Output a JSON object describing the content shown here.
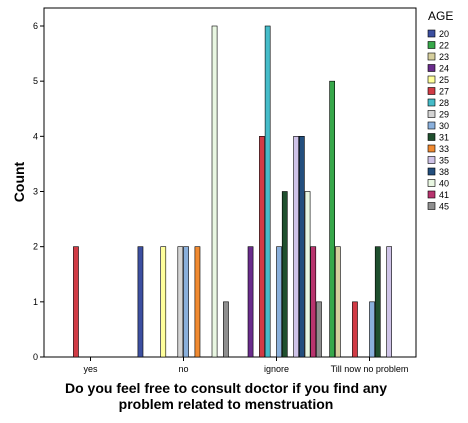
{
  "chart_data": {
    "type": "bar",
    "title": "",
    "xlabel": "Do you feel free to consult doctor if you find any problem related to menstruation",
    "ylabel": "Count",
    "categories": [
      "yes",
      "no",
      "ignore",
      "Till now no problem"
    ],
    "ylim": [
      0,
      6
    ],
    "yticks": [
      0,
      1,
      2,
      3,
      4,
      5,
      6
    ],
    "grid": false,
    "legend_title": "AGE",
    "legend_position": "right",
    "series": [
      {
        "name": "20",
        "color": "#3c4fa0",
        "values": [
          0,
          2,
          0,
          0
        ]
      },
      {
        "name": "22",
        "color": "#37a84a",
        "values": [
          0,
          0,
          0,
          5
        ]
      },
      {
        "name": "23",
        "color": "#d6cf9e",
        "values": [
          0,
          0,
          0,
          2
        ]
      },
      {
        "name": "24",
        "color": "#6a2c8c",
        "values": [
          0,
          0,
          2,
          0
        ]
      },
      {
        "name": "25",
        "color": "#ffff9c",
        "values": [
          0,
          2,
          0,
          0
        ]
      },
      {
        "name": "27",
        "color": "#d13b45",
        "values": [
          2,
          0,
          4,
          1
        ]
      },
      {
        "name": "28",
        "color": "#45bcc9",
        "values": [
          0,
          0,
          6,
          0
        ]
      },
      {
        "name": "29",
        "color": "#d4d4d4",
        "values": [
          0,
          2,
          0,
          0
        ]
      },
      {
        "name": "30",
        "color": "#8ab0dc",
        "values": [
          0,
          2,
          2,
          1
        ]
      },
      {
        "name": "31",
        "color": "#1f4f2e",
        "values": [
          0,
          0,
          3,
          2
        ]
      },
      {
        "name": "33",
        "color": "#f08a31",
        "values": [
          0,
          2,
          0,
          0
        ]
      },
      {
        "name": "35",
        "color": "#cfc3e8",
        "values": [
          0,
          0,
          4,
          2
        ]
      },
      {
        "name": "38",
        "color": "#234f7e",
        "values": [
          0,
          0,
          4,
          0
        ]
      },
      {
        "name": "40",
        "color": "#e9f7e2",
        "values": [
          0,
          6,
          3,
          0
        ]
      },
      {
        "name": "41",
        "color": "#b8346e",
        "values": [
          0,
          0,
          2,
          0
        ]
      },
      {
        "name": "45",
        "color": "#8f8f8f",
        "values": [
          0,
          1,
          1,
          0
        ]
      }
    ]
  }
}
